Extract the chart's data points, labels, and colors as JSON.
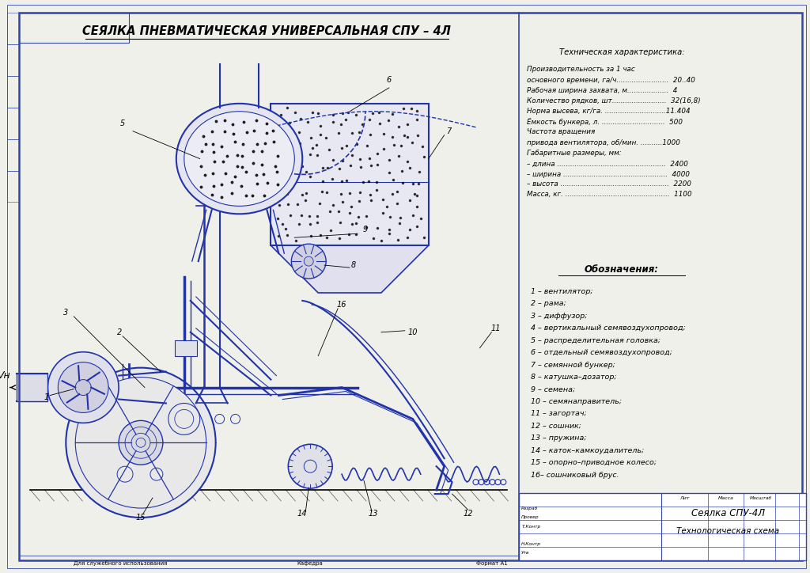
{
  "bg_color": "#ffffff",
  "paper_color": "#f0f0eb",
  "border_color": "#3344aa",
  "line_color": "#2233aa",
  "title": "СЕЯЛКА ПНЕВМАТИЧЕСКАЯ УНИВЕРСАЛЬНАЯ СПУ – 4Л",
  "tech_title": "Техническая характеристика:",
  "tech_specs": [
    "Производительность за 1 час",
    "основного времени, га/ч........................  20..40",
    "Рабочая ширина захвата, м...................  4",
    "Количество рядков, шт.........................  32(16,8)",
    "Норма высева, кг/га. ............................11.404",
    "Ёмкость бункера, л. .............................  500",
    "Частота вращения",
    "привода вентилятора, об/мин. ..........1000",
    "Габаритные размеры, мм:",
    "– длина ..................................................  2400",
    "– ширина ................................................  4000",
    "– высота ..................................................  2200",
    "Масса, кг. ................................................  1100"
  ],
  "oboznacheniya_title": "Обозначения:",
  "legend_items": [
    "1 – вентилятор;",
    "2 – рама;",
    "3 – диффузор;",
    "4 – вертикальный семявоздухопровод;",
    "5 – распределительная головка;",
    "6 – отдельный семявоздухопровод;",
    "7 – семянной бункер;",
    "8 – катушка–дозатор;",
    "9 – семена;",
    "10 – семянаправитель;",
    "11 – загортач;",
    "12 – сошник;",
    "13 – пружина;",
    "14 – каток–камкоудалитель;",
    "15 – опорно–приводное колесо;",
    "16– сошниковый брус."
  ],
  "stamp_name": "Сеялка СПУ-4Л",
  "stamp_desc": "Технологическая схема",
  "vn_label": "Vн",
  "left_margin_labels": [
    "Разраб",
    "Провер",
    "Т.Контр",
    "",
    "Н.Контр",
    "Утв"
  ],
  "bottom_left": "Для служебного использования",
  "bottom_center": "Кафедра",
  "bottom_right": "Формат А1"
}
